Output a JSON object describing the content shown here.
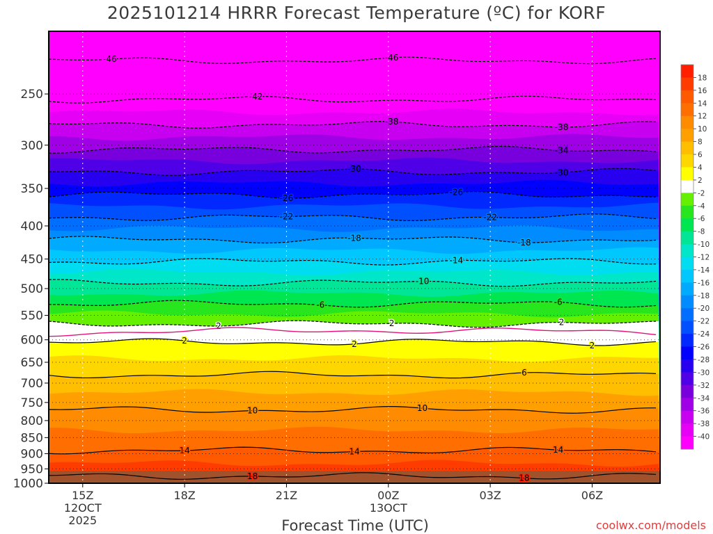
{
  "chart_data": {
    "type": "heatmap",
    "title": "2025101214 HRRR Forecast Temperature (ºC) for KORF",
    "xlabel": "Forecast Time (UTC)",
    "ylabel": "",
    "credit": "coolwx.com/models",
    "x_ticks": [
      {
        "hour": 15,
        "labels": [
          "15Z",
          "12OCT",
          "2025"
        ]
      },
      {
        "hour": 18,
        "labels": [
          "18Z"
        ]
      },
      {
        "hour": 21,
        "labels": [
          "21Z"
        ]
      },
      {
        "hour": 24,
        "labels": [
          "00Z",
          "13OCT"
        ]
      },
      {
        "hour": 27,
        "labels": [
          "03Z"
        ]
      },
      {
        "hour": 30,
        "labels": [
          "06Z"
        ]
      }
    ],
    "xlim": [
      14,
      32
    ],
    "y_ticks": [
      250,
      300,
      350,
      400,
      450,
      500,
      550,
      600,
      650,
      700,
      750,
      800,
      850,
      900,
      950,
      1000
    ],
    "ylim_hpa": [
      200,
      1000
    ],
    "contours": [
      {
        "level": -46,
        "p": 222,
        "label_hours": [
          15.8,
          24.1
        ]
      },
      {
        "level": -42,
        "p": 255,
        "label_hours": [
          20.1
        ]
      },
      {
        "level": -38,
        "p": 279,
        "label_hours": [
          24.1,
          29.1
        ]
      },
      {
        "level": -34,
        "p": 305,
        "label_hours": [
          29.1
        ]
      },
      {
        "level": -30,
        "p": 330,
        "label_hours": [
          23.0,
          29.1
        ]
      },
      {
        "level": -26,
        "p": 358,
        "label_hours": [
          21.0,
          26.0
        ]
      },
      {
        "level": -22,
        "p": 388,
        "label_hours": [
          21.0,
          27.0
        ]
      },
      {
        "level": -18,
        "p": 420,
        "label_hours": [
          23.0,
          28.0
        ]
      },
      {
        "level": -14,
        "p": 454,
        "label_hours": [
          26.0
        ]
      },
      {
        "level": -10,
        "p": 490,
        "label_hours": [
          25.0
        ]
      },
      {
        "level": -6,
        "p": 528,
        "label_hours": [
          22.0,
          29.0
        ]
      },
      {
        "level": -2,
        "p": 567,
        "label_hours": [
          19.0,
          24.1,
          29.1
        ]
      },
      {
        "level": 2,
        "p": 605,
        "label_hours": [
          18.0,
          23.0,
          30.0
        ]
      },
      {
        "level": 6,
        "p": 680,
        "label_hours": [
          28.0
        ]
      },
      {
        "level": 10,
        "p": 770,
        "label_hours": [
          20.0,
          25.0
        ]
      },
      {
        "level": 14,
        "p": 890,
        "label_hours": [
          18.0,
          23.0,
          29.0
        ]
      },
      {
        "level": 18,
        "p": 975,
        "label_hours": [
          20.0,
          28.0
        ]
      }
    ],
    "colorbar": {
      "labels": [
        18,
        16,
        14,
        12,
        10,
        8,
        6,
        4,
        2,
        -2,
        -4,
        -6,
        -8,
        -10,
        -12,
        -14,
        -16,
        -18,
        -20,
        -22,
        -24,
        -26,
        -28,
        -30,
        -32,
        -34,
        -36,
        -38,
        -40
      ],
      "colors": [
        "#ff1e00",
        "#ff3c00",
        "#ff5a00",
        "#ff6e00",
        "#ff8c00",
        "#ffa000",
        "#ffbe00",
        "#ffd700",
        "#ffff00",
        "#ffffff",
        "#64f000",
        "#28e61e",
        "#00e650",
        "#00e696",
        "#00e6c8",
        "#00dcf0",
        "#00c8ff",
        "#00aaff",
        "#008cff",
        "#006eff",
        "#0050ff",
        "#0028ff",
        "#0000ff",
        "#2800f0",
        "#5000e6",
        "#7800dc",
        "#a000e6",
        "#c800f0",
        "#e600f5",
        "#ff00ff"
      ]
    },
    "ground_color": "#a0522d",
    "grid": true
  }
}
